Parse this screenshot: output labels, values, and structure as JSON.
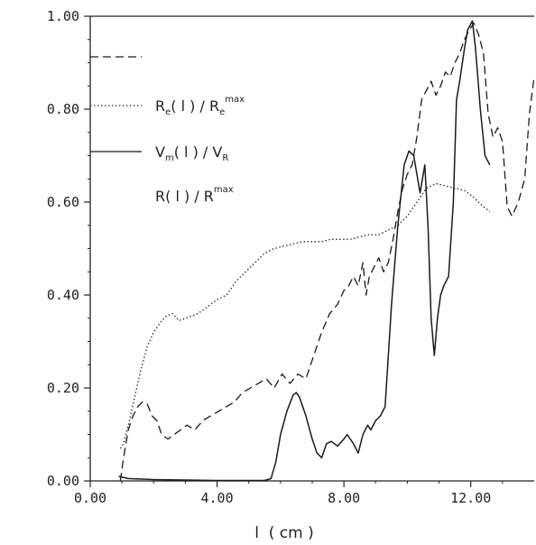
{
  "chart_data": {
    "type": "line",
    "title": "",
    "xlabel": "l  ( cm )",
    "ylabel": "",
    "xlim": [
      0,
      14
    ],
    "ylim": [
      0,
      1
    ],
    "x_ticks": [
      "0.00",
      "4.00",
      "8.00",
      "12.00"
    ],
    "y_ticks": [
      "0.00",
      "0.20",
      "0.40",
      "0.60",
      "0.80",
      "1.00"
    ],
    "grid": false,
    "legend_position": "top-left",
    "legend": [
      {
        "style": "dashed",
        "text": ""
      },
      {
        "style": "dotted",
        "main": "R",
        "sub": "e",
        "mid": "( l )  /  R",
        "sub2": "e",
        "sup": "max"
      },
      {
        "style": "solid",
        "main": "V",
        "sub": "m",
        "mid": "( l )  /  V",
        "sub2": "R",
        "sup": ""
      },
      {
        "style": "none",
        "main": "R",
        "sub": "",
        "mid": "( l )  /  R",
        "sub2": "",
        "sup": "max"
      }
    ],
    "series": [
      {
        "style": "dashed",
        "x": [
          0.95,
          1.05,
          1.2,
          1.35,
          1.5,
          1.65,
          1.8,
          1.95,
          2.1,
          2.25,
          2.45,
          2.65,
          2.85,
          3.05,
          3.3,
          3.55,
          3.8,
          4.05,
          4.3,
          4.55,
          4.8,
          5.05,
          5.3,
          5.55,
          5.8,
          6.05,
          6.3,
          6.55,
          6.8,
          7.05,
          7.3,
          7.55,
          7.8,
          8.0,
          8.15,
          8.3,
          8.45,
          8.6,
          8.7,
          8.8,
          8.95,
          9.1,
          9.25,
          9.4,
          9.55,
          9.7,
          9.85,
          10.0,
          10.15,
          10.3,
          10.45,
          10.6,
          10.75,
          10.9,
          11.05,
          11.2,
          11.35,
          11.5,
          11.65,
          11.8,
          11.95,
          12.1,
          12.25,
          12.4,
          12.55,
          12.7,
          12.85,
          13.0,
          13.15,
          13.3,
          13.5,
          13.7,
          13.85,
          14.0
        ],
        "y": [
          0.0,
          0.05,
          0.11,
          0.14,
          0.16,
          0.17,
          0.165,
          0.14,
          0.13,
          0.1,
          0.09,
          0.1,
          0.11,
          0.12,
          0.11,
          0.13,
          0.14,
          0.15,
          0.16,
          0.17,
          0.19,
          0.2,
          0.21,
          0.22,
          0.2,
          0.23,
          0.21,
          0.23,
          0.22,
          0.27,
          0.32,
          0.36,
          0.38,
          0.41,
          0.42,
          0.44,
          0.42,
          0.47,
          0.4,
          0.44,
          0.46,
          0.48,
          0.45,
          0.47,
          0.52,
          0.58,
          0.63,
          0.66,
          0.68,
          0.74,
          0.82,
          0.84,
          0.86,
          0.83,
          0.85,
          0.88,
          0.87,
          0.9,
          0.92,
          0.95,
          0.97,
          0.985,
          0.96,
          0.92,
          0.79,
          0.74,
          0.76,
          0.73,
          0.59,
          0.57,
          0.6,
          0.65,
          0.79,
          0.87
        ]
      },
      {
        "style": "dotted",
        "x": [
          0.95,
          1.05,
          1.2,
          1.4,
          1.6,
          1.8,
          2.0,
          2.2,
          2.4,
          2.6,
          2.8,
          3.0,
          3.2,
          3.4,
          3.6,
          3.8,
          4.0,
          4.3,
          4.6,
          4.9,
          5.2,
          5.5,
          5.8,
          6.1,
          6.4,
          6.7,
          7.0,
          7.3,
          7.6,
          7.9,
          8.2,
          8.5,
          8.8,
          9.1,
          9.4,
          9.7,
          10.0,
          10.3,
          10.6,
          10.9,
          11.2,
          11.5,
          11.8,
          12.1,
          12.4,
          12.6
        ],
        "y": [
          0.07,
          0.08,
          0.12,
          0.18,
          0.24,
          0.29,
          0.32,
          0.34,
          0.355,
          0.36,
          0.345,
          0.35,
          0.355,
          0.36,
          0.37,
          0.38,
          0.39,
          0.4,
          0.43,
          0.45,
          0.47,
          0.49,
          0.5,
          0.505,
          0.51,
          0.515,
          0.515,
          0.515,
          0.52,
          0.52,
          0.52,
          0.525,
          0.53,
          0.53,
          0.54,
          0.55,
          0.57,
          0.6,
          0.63,
          0.64,
          0.635,
          0.63,
          0.625,
          0.61,
          0.59,
          0.58
        ]
      },
      {
        "style": "solid",
        "x": [
          0.9,
          1.2,
          2.0,
          3.0,
          4.0,
          5.0,
          5.5,
          5.7,
          5.85,
          6.0,
          6.2,
          6.4,
          6.5,
          6.6,
          6.8,
          7.0,
          7.15,
          7.3,
          7.45,
          7.6,
          7.8,
          8.0,
          8.1,
          8.3,
          8.45,
          8.6,
          8.75,
          8.85,
          9.0,
          9.15,
          9.3,
          9.5,
          9.7,
          9.9,
          10.05,
          10.2,
          10.4,
          10.55,
          10.65,
          10.75,
          10.85,
          10.95,
          11.05,
          11.15,
          11.3,
          11.45,
          11.55,
          11.65,
          11.8,
          11.9,
          12.05,
          12.15,
          12.3,
          12.45,
          12.6
        ],
        "y": [
          0.01,
          0.005,
          0.003,
          0.002,
          0.001,
          0.001,
          0.001,
          0.005,
          0.04,
          0.1,
          0.15,
          0.185,
          0.19,
          0.18,
          0.14,
          0.09,
          0.06,
          0.05,
          0.08,
          0.085,
          0.075,
          0.09,
          0.1,
          0.08,
          0.06,
          0.1,
          0.12,
          0.11,
          0.13,
          0.14,
          0.16,
          0.38,
          0.55,
          0.68,
          0.71,
          0.7,
          0.62,
          0.68,
          0.55,
          0.35,
          0.27,
          0.35,
          0.4,
          0.42,
          0.44,
          0.6,
          0.82,
          0.86,
          0.93,
          0.97,
          0.99,
          0.93,
          0.8,
          0.7,
          0.68
        ]
      }
    ]
  }
}
